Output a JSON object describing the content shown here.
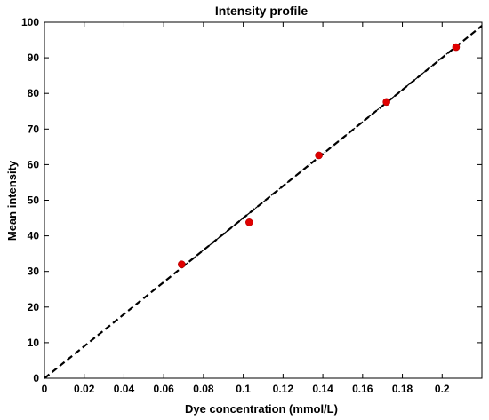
{
  "chart_data": {
    "type": "scatter",
    "title": "Intensity profile",
    "xlabel": "Dye concentration (mmol/L)",
    "ylabel": "Mean intensity",
    "xlim": [
      0,
      0.22
    ],
    "ylim": [
      0,
      100
    ],
    "xticks": [
      0,
      0.02,
      0.04,
      0.06,
      0.08,
      0.1,
      0.12,
      0.14,
      0.16,
      0.18,
      0.2
    ],
    "xtick_labels": [
      "0",
      "0.02",
      "0.04",
      "0.06",
      "0.08",
      "0.1",
      "0.12",
      "0.14",
      "0.16",
      "0.18",
      "0.2"
    ],
    "yticks": [
      0,
      10,
      20,
      30,
      40,
      50,
      60,
      70,
      80,
      90,
      100
    ],
    "ytick_labels": [
      "0",
      "10",
      "20",
      "30",
      "40",
      "50",
      "60",
      "70",
      "80",
      "90",
      "100"
    ],
    "grid": false,
    "points": {
      "x": [
        0.069,
        0.103,
        0.138,
        0.172,
        0.207
      ],
      "y": [
        32,
        43.8,
        62.6,
        77.6,
        93
      ],
      "color": "#e00000"
    },
    "fit_line": {
      "x": [
        0,
        0.22
      ],
      "y": [
        0,
        99
      ],
      "color": "#000000",
      "style": "dashed"
    },
    "fit_segment": {
      "x": [
        0.07,
        0.207
      ],
      "y": [
        31.5,
        93.2
      ],
      "color": "#000000",
      "style": "dash-dot"
    }
  }
}
